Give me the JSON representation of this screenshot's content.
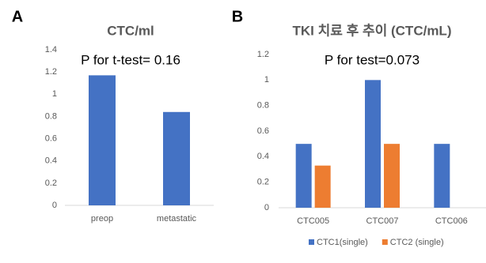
{
  "chart_data": [
    {
      "type": "bar",
      "label": "A",
      "title": "CTC/ml",
      "annotation": "P for t-test= 0.16",
      "categories": [
        "preop",
        "metastatic"
      ],
      "values": [
        1.17,
        0.84
      ],
      "color": "#4472c4",
      "ylim": [
        0,
        1.4
      ],
      "yticks": [
        0,
        0.2,
        0.4,
        0.6,
        0.8,
        1,
        1.2,
        1.4
      ],
      "grid": false
    },
    {
      "type": "bar",
      "label": "B",
      "title": "TKI 치료 후  추이 (CTC/mL)",
      "annotation": "P for test=0.073",
      "categories": [
        "CTC005",
        "CTC007",
        "CTC006"
      ],
      "series": [
        {
          "name": "CTC1(single)",
          "color": "#4472c4",
          "values": [
            0.5,
            1,
            0.5
          ]
        },
        {
          "name": "CTC2 (single)",
          "color": "#ed7d31",
          "values": [
            0.33,
            0.5,
            0
          ]
        }
      ],
      "ylim": [
        0,
        1.2
      ],
      "yticks": [
        0,
        0.2,
        0.4,
        0.6,
        0.8,
        1,
        1.2
      ],
      "grid": false,
      "legend": "bottom"
    }
  ]
}
